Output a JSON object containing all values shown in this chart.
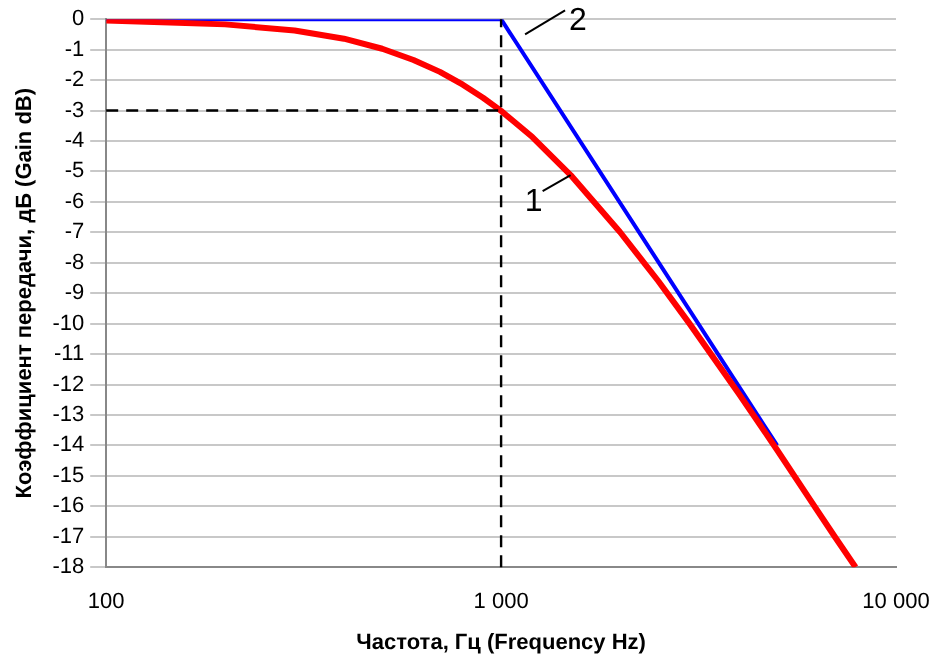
{
  "chart_data": {
    "type": "line",
    "xlabel": "Частота, Гц (Frequency Hz)",
    "ylabel": "Коэффициент передачи, дБ (Gain dB)",
    "log": "x",
    "xlim": [
      100,
      10000
    ],
    "xticks": [
      100,
      {
        "value": 1000,
        "label": "1 000"
      },
      {
        "value": 10000,
        "label": "10 000"
      }
    ],
    "ylim": [
      -18,
      0
    ],
    "yticks": [
      0,
      -1,
      -2,
      -3,
      -4,
      -5,
      -6,
      -7,
      -8,
      -9,
      -10,
      -11,
      -12,
      -13,
      -14,
      -15,
      -16,
      -17,
      -18
    ],
    "grid": "y",
    "marker": "none",
    "line_style": "solid",
    "series": [
      {
        "color": "#ff0000",
        "x": [
          100,
          200,
          300,
          400,
          500,
          600,
          700,
          800,
          900,
          1000,
          1200,
          1500,
          2000,
          2500,
          3000,
          4000,
          5000,
          6000,
          7000,
          7900
        ],
        "values": [
          -0.04,
          -0.17,
          -0.37,
          -0.64,
          -0.97,
          -1.34,
          -1.73,
          -2.15,
          -2.58,
          -3.01,
          -3.87,
          -5.12,
          -6.99,
          -8.6,
          -10.0,
          -12.3,
          -14.15,
          -15.7,
          -17.0,
          -18.0
        ]
      },
      {
        "color": "#0000ff",
        "x": [
          100,
          1000,
          5000
        ],
        "values": [
          0,
          0,
          -14
        ]
      }
    ],
    "ref_lines": [
      {
        "axis": "x",
        "value": 1000,
        "color": "#000000",
        "line_style": "dashed"
      },
      {
        "axis": "y",
        "value": -3,
        "color": "#000000",
        "line_style": "dashed"
      }
    ],
    "annotations": [
      {
        "text": "1",
        "x": 1500,
        "y": -5.12
      },
      {
        "text": "2",
        "x": 1150,
        "y": -0.5
      }
    ]
  }
}
